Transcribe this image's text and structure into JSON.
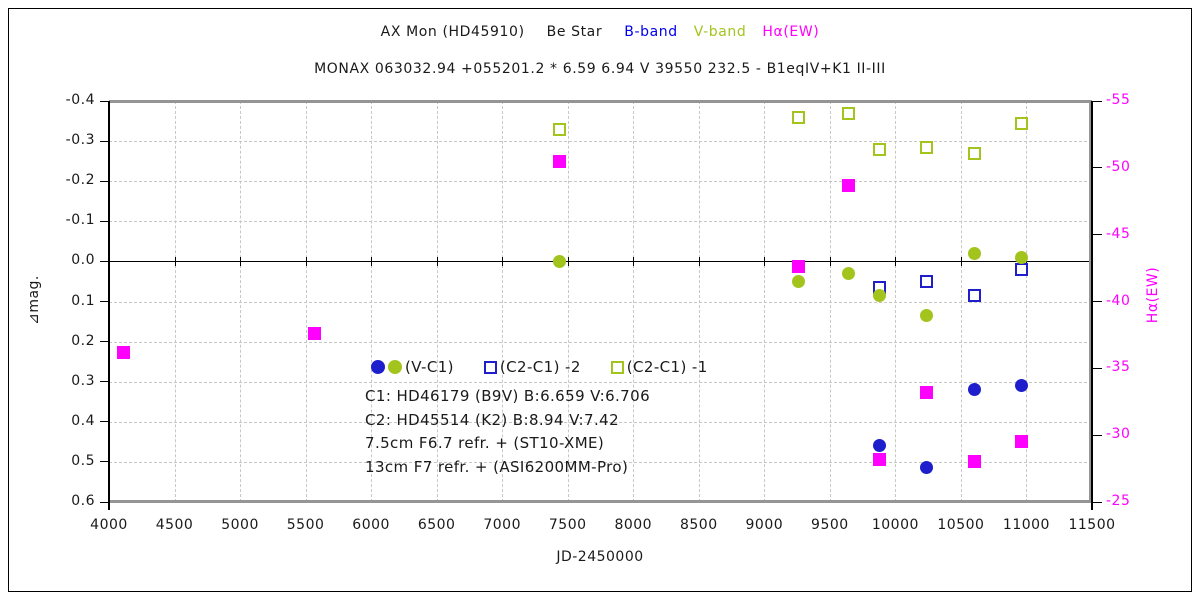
{
  "title": {
    "star": "AX Mon (HD45910)",
    "star_type": "Be Star",
    "b_band": "B-band",
    "v_band": "V-band",
    "ha": "Hα(EW)",
    "catalog_line": "MONAX 063032.94 +055201.2 * 6.59 6.94 V 39550 232.5 - B1eqIV+K1 II-III"
  },
  "colors": {
    "blue": "#1e1ecd",
    "blue_text": "#0000ee",
    "green": "#a3c41d",
    "magenta": "#ff00ff",
    "grid": "#c7c7c7",
    "frame": "#959595",
    "text": "#1a1a1a"
  },
  "legend": {
    "items": [
      {
        "label": "(V-C1)",
        "markers": [
          "filled-circle-blue",
          "filled-circle-green"
        ]
      },
      {
        "label": "(C2-C1) -2",
        "markers": [
          "open-square-blue"
        ]
      },
      {
        "label": "(C2-C1) -1",
        "markers": [
          "open-square-green"
        ]
      }
    ]
  },
  "annotations": [
    "C1: HD46179 (B9V)  B:6.659 V:6.706",
    "C2: HD45514 (K2)  B:8.94 V:7.42",
    "7.5cm F6.7  refr.  +  (ST10-XME)",
    "13cm F7  refr.  +  (ASI6200MM-Pro)"
  ],
  "chart_data": {
    "type": "scatter",
    "title": "AX Mon (HD45910)  Be Star  B-band  V-band  Hα(EW)",
    "xlabel": "JD-2450000",
    "ylabel_left": "⊿mag.",
    "ylabel_right": "Hα(EW)",
    "x_axis": {
      "min": 4000,
      "max": 11500,
      "step": 500
    },
    "y_left_axis": {
      "min": -0.4,
      "max": 0.6,
      "step": 0.1,
      "note": "min at top (inverted magnitude scale)"
    },
    "y_right_axis": {
      "min": -55,
      "max": -25,
      "step": 5,
      "note": "min at top"
    },
    "grid": "dashed both axes, solid black zero line with x-ticks",
    "legend_position": "inside lower-middle",
    "series": [
      {
        "name": "(C2-C1) -1  V-band check",
        "marker": "open-square",
        "color_key": "green",
        "axis": "left",
        "points": [
          [
            7440,
            -0.33
          ],
          [
            9260,
            -0.36
          ],
          [
            9640,
            -0.37
          ],
          [
            9880,
            -0.28
          ],
          [
            10240,
            -0.285
          ],
          [
            10600,
            -0.27
          ],
          [
            10960,
            -0.345
          ]
        ]
      },
      {
        "name": "(C2-C1) -2  B-band check",
        "marker": "open-square",
        "color_key": "blue",
        "axis": "left",
        "points": [
          [
            9880,
            0.065
          ],
          [
            10240,
            0.05
          ],
          [
            10600,
            0.085
          ],
          [
            10960,
            0.02
          ]
        ]
      },
      {
        "name": "Hα(EW)",
        "marker": "filled-square",
        "color_key": "magenta",
        "axis": "right",
        "points": [
          [
            4110,
            -36.2
          ],
          [
            5570,
            -37.6
          ],
          [
            7440,
            -50.5
          ],
          [
            9260,
            -42.6
          ],
          [
            9640,
            -48.7
          ],
          [
            9880,
            -28.2
          ],
          [
            10240,
            -33.2
          ],
          [
            10600,
            -28.0
          ],
          [
            10960,
            -29.5
          ]
        ]
      },
      {
        "name": "V-C1  B-band",
        "marker": "filled-circle",
        "color_key": "blue",
        "axis": "left",
        "points": [
          [
            9880,
            0.46
          ],
          [
            10240,
            0.515
          ],
          [
            10600,
            0.32
          ],
          [
            10960,
            0.31
          ]
        ]
      },
      {
        "name": "V-C1  V-band",
        "marker": "filled-circle",
        "color_key": "green",
        "axis": "left",
        "points": [
          [
            7440,
            0.0
          ],
          [
            9260,
            0.05
          ],
          [
            9640,
            0.03
          ],
          [
            9880,
            0.085
          ],
          [
            10240,
            0.135
          ],
          [
            10600,
            -0.02
          ],
          [
            10960,
            -0.01
          ]
        ]
      }
    ]
  }
}
